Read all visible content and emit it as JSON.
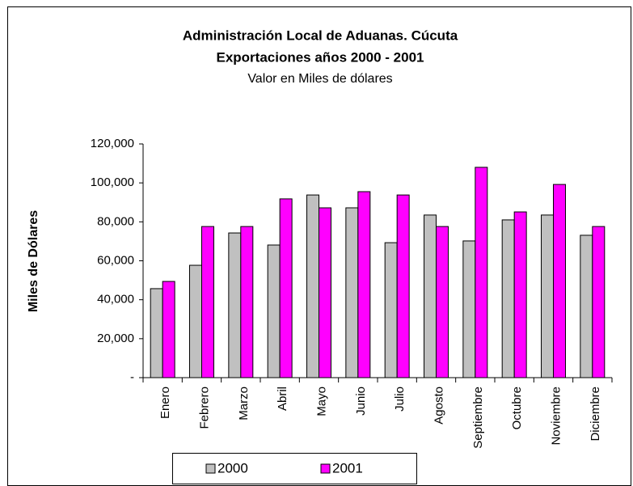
{
  "chart_data": {
    "type": "bar",
    "title": "Administración Local de Aduanas. Cúcuta",
    "subtitle": "Exportaciones años 2000 - 2001",
    "subtitle2": "Valor en Miles de dólares",
    "ylabel": "Miles de Dólares",
    "categories": [
      "Enero",
      "Febrero",
      "Marzo",
      "Abril",
      "Mayo",
      "Junio",
      "Julio",
      "Agosto",
      "Septiembre",
      "Octubre",
      "Noviembre",
      "Diciembre"
    ],
    "series": [
      {
        "name": "2000",
        "color": "#c0c0c0",
        "values": [
          45700,
          57700,
          74300,
          68100,
          93800,
          87200,
          69300,
          83500,
          70200,
          81000,
          83500,
          73100
        ]
      },
      {
        "name": "2001",
        "color": "#ff00ff",
        "values": [
          49400,
          77600,
          77600,
          91800,
          87200,
          95500,
          93800,
          77600,
          108000,
          85100,
          99200,
          77600
        ]
      }
    ],
    "ylim": [
      0,
      120000
    ],
    "yticks": [
      {
        "value": 0,
        "label": "-"
      },
      {
        "value": 20000,
        "label": "20,000"
      },
      {
        "value": 40000,
        "label": "40,000"
      },
      {
        "value": 60000,
        "label": "60,000"
      },
      {
        "value": 80000,
        "label": "80,000"
      },
      {
        "value": 100000,
        "label": "100,000"
      },
      {
        "value": 120000,
        "label": "120,000"
      }
    ],
    "legend": "bottom"
  }
}
